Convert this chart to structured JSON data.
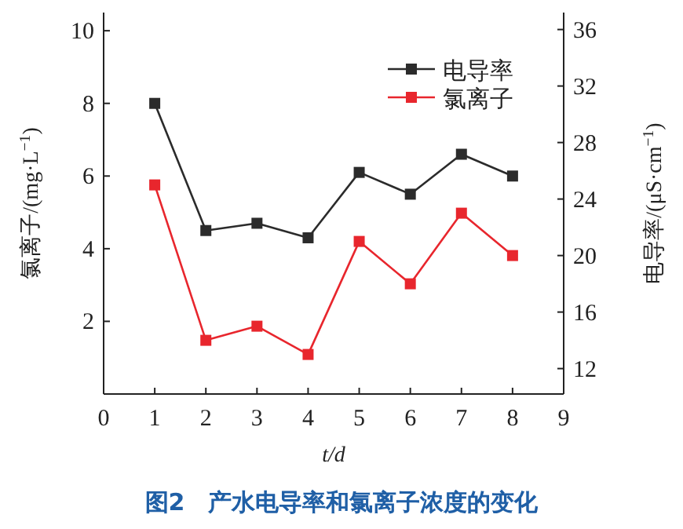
{
  "chart_data": {
    "type": "line",
    "title": "图2　产水电导率和氯离子浓度的变化",
    "xlabel": "t/d",
    "ylabel": "氯离子/(mg·L$^{−1}$)",
    "y2label": "电导率/(μS·cm$^{−1}$)",
    "x": [
      1,
      2,
      3,
      4,
      5,
      6,
      7,
      8
    ],
    "series": [
      {
        "name": "电导率",
        "color": "#2b2b2b",
        "values": [
          8,
          4.5,
          4.7,
          4.3,
          6.1,
          5.5,
          6.6,
          6.0
        ]
      },
      {
        "name": "氯离子",
        "color": "#e8262d",
        "axis": "y2",
        "values": [
          25,
          14,
          15,
          13,
          21,
          18,
          23,
          20
        ]
      }
    ],
    "xlim": [
      0,
      9
    ],
    "xticks": [
      0,
      1,
      2,
      3,
      4,
      5,
      6,
      7,
      8,
      9
    ],
    "ylim": [
      0,
      10.5
    ],
    "yticks": [
      2,
      4,
      6,
      8,
      10
    ],
    "y2lim": [
      10.2,
      37.2
    ],
    "y2ticks": [
      12,
      16,
      20,
      24,
      28,
      32,
      36
    ],
    "marker": "square",
    "line_style": "solid",
    "legend": "top right",
    "grid": false
  }
}
